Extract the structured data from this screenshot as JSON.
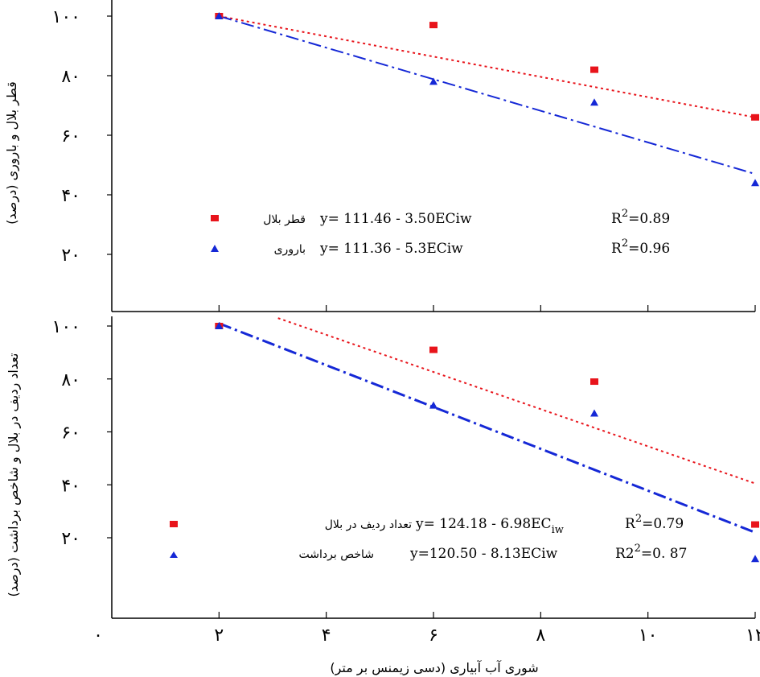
{
  "chart_data": [
    {
      "type": "scatter",
      "panel": "top",
      "ylabel": "قطر بلال و باروری (درصد)",
      "y_ticks": [
        "۲۰",
        "۴۰",
        "۶۰",
        "۸۰",
        "۱۰۰"
      ],
      "ylim": [
        10,
        105
      ],
      "xlim": [
        0,
        12
      ],
      "x": [
        2,
        6,
        9,
        12
      ],
      "series": [
        {
          "name": "قطر بلال",
          "marker": "square",
          "color": "#e8141b",
          "values": [
            100,
            97,
            82,
            66
          ],
          "fit": {
            "x": [
              2,
              12
            ],
            "y": [
              100,
              66
            ],
            "style": "dotted"
          },
          "equation": "y= 111.46 - 3.50ECiw",
          "r2_label": "R",
          "r2_sup": "2",
          "r2_value": "=0.89"
        },
        {
          "name": "باروری",
          "marker": "triangle",
          "color": "#1528d6",
          "values": [
            100,
            78,
            71,
            44
          ],
          "fit": {
            "x": [
              2,
              12
            ],
            "y": [
              100,
              47
            ],
            "style": "dashdot"
          },
          "equation": "y= 111.36 - 5.3ECiw",
          "r2_label": "R",
          "r2_sup": "2",
          "r2_value": "=0.96"
        }
      ]
    },
    {
      "type": "scatter",
      "panel": "bottom",
      "ylabel": "تعداد ردیف در بلال و شاخص برداشت (درصد)",
      "xlabel": "شوری آب آبیاری (دسی زیمنس بر متر)",
      "x_ticks": [
        "۰",
        "۲",
        "۴",
        "۶",
        "۸",
        "۱۰",
        "۱۲"
      ],
      "y_ticks": [
        "۲۰",
        "۴۰",
        "۶۰",
        "۸۰",
        "۱۰۰"
      ],
      "ylim": [
        2,
        103
      ],
      "xlim": [
        0,
        12
      ],
      "x": [
        2,
        6,
        9,
        12
      ],
      "series": [
        {
          "name": "تعداد ردیف در بلال",
          "marker": "square",
          "color": "#e8141b",
          "values": [
            100,
            91,
            79,
            25
          ],
          "fit": {
            "x": [
              3.1,
              12
            ],
            "y": [
              103,
              40.5
            ],
            "style": "dotted"
          },
          "equation": "y=  124.18 - 6.98EC",
          "eq_sub": "iw",
          "r2_label": "R",
          "r2_sup": "2",
          "r2_value": "=0.79"
        },
        {
          "name": "شاخص برداشت",
          "marker": "triangle",
          "color": "#1528d6",
          "values": [
            100,
            70,
            67,
            12
          ],
          "fit": {
            "x": [
              2,
              12
            ],
            "y": [
              101,
              22
            ],
            "style": "dashdot"
          },
          "equation": "y=120.50 - 8.13ECiw",
          "r2_label": "R2",
          "r2_sup": "2",
          "r2_value": "=0. 87"
        }
      ]
    }
  ]
}
